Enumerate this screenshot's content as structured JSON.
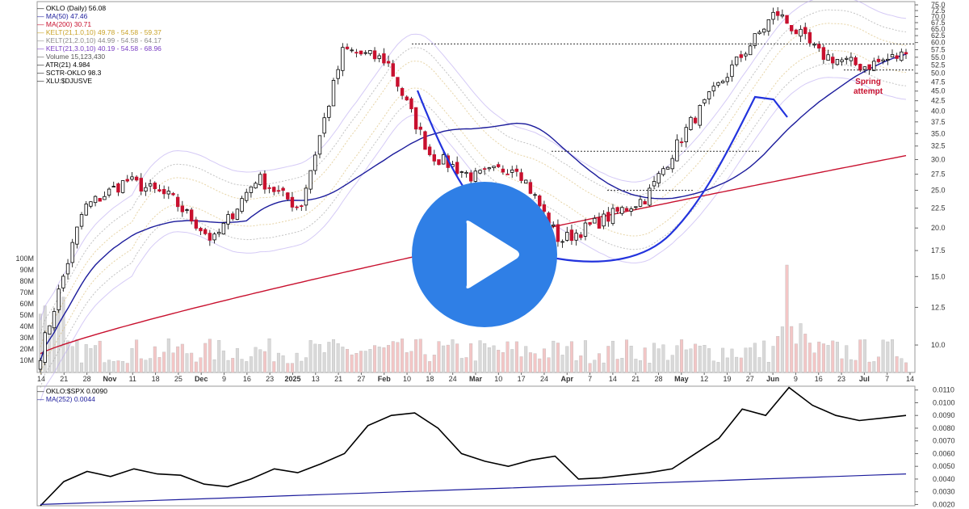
{
  "legend": {
    "price": [
      {
        "label": "OKLO (Daily) 56.08",
        "color": "#000000"
      },
      {
        "label": "MA(50) 47.46",
        "color": "#1c1c9c"
      },
      {
        "label": "MA(200) 30.71",
        "color": "#c8102e"
      },
      {
        "label": "KELT(21,1.0,10) 49.78 - 54.58 - 59.37",
        "color": "#c9a227"
      },
      {
        "label": "KELT(21,2.0,10) 44.99 - 54.58 - 64.17",
        "color": "#8a8a8a"
      },
      {
        "label": "KELT(21,3.0,10) 40.19 - 54.58 - 68.96",
        "color": "#7b3fc4"
      },
      {
        "label": "Volume 15,123,430",
        "color": "#555555"
      },
      {
        "label": "ATR(21) 4.984",
        "color": "#000000"
      },
      {
        "label": "SCTR-OKLO 98.3",
        "color": "#000000"
      },
      {
        "label": "XLU:$DJUSVE",
        "color": "#000000"
      }
    ],
    "ratio": [
      {
        "label": "OKLO:$SPX 0.0090",
        "color": "#000000"
      },
      {
        "label": "MA(252) 0.0044",
        "color": "#1c1c9c"
      }
    ]
  },
  "annotations": {
    "spring": [
      "Spring",
      "attempt"
    ],
    "spring_color": "#c8102e",
    "curve_color": "#2233dd"
  },
  "colors": {
    "up_candle": "#ffffff",
    "down_candle": "#c8102e",
    "ma50": "#1c1c9c",
    "ma200": "#c8102e",
    "play": "#2f7fe6"
  },
  "chart_data": [
    {
      "type": "candlestick",
      "title": "OKLO (Daily) 56.08",
      "yscale": "log",
      "ylim": [
        8.5,
        75
      ],
      "y_ticks": [
        "75.0",
        "72.5",
        "70.0",
        "67.5",
        "65.0",
        "62.5",
        "60.0",
        "57.5",
        "55.0",
        "52.5",
        "50.0",
        "47.5",
        "45.0",
        "42.5",
        "40.0",
        "37.5",
        "35.0",
        "32.5",
        "30.0",
        "27.5",
        "25.0",
        "22.5",
        "20.0",
        "17.5",
        "15.0",
        "12.5",
        "10.0"
      ],
      "volume_ticks": [
        "100M",
        "90M",
        "80M",
        "70M",
        "60M",
        "50M",
        "40M",
        "30M",
        "20M",
        "10M"
      ],
      "x_labels": [
        "14",
        "21",
        "28",
        "Nov",
        "11",
        "18",
        "25",
        "Dec",
        "9",
        "16",
        "23",
        "2025",
        "13",
        "21",
        "27",
        "Feb",
        "10",
        "18",
        "24",
        "Mar",
        "10",
        "17",
        "24",
        "Apr",
        "7",
        "14",
        "21",
        "28",
        "May",
        "12",
        "19",
        "27",
        "Jun",
        "9",
        "16",
        "23",
        "Jul",
        "7",
        "14"
      ],
      "bold_labels": [
        "Nov",
        "Dec",
        "2025",
        "Feb",
        "Mar",
        "Apr",
        "May",
        "Jun",
        "Jul"
      ],
      "key_points": [
        {
          "date": "Oct 14",
          "close": 9.5
        },
        {
          "date": "Oct 21",
          "close": 22.5
        },
        {
          "date": "Nov 5",
          "close": 26.5
        },
        {
          "date": "Nov 25",
          "close": 24
        },
        {
          "date": "Dec 16",
          "close": 18.5
        },
        {
          "date": "Jan 7",
          "close": 27
        },
        {
          "date": "Jan 15",
          "close": 22.5
        },
        {
          "date": "Feb 7",
          "close": 57.5
        },
        {
          "date": "Feb 10",
          "close": 54
        },
        {
          "date": "Mar 4",
          "close": 31
        },
        {
          "date": "Mar 17",
          "close": 27
        },
        {
          "date": "Mar 24",
          "close": 29
        },
        {
          "date": "Apr 7",
          "close": 18.5
        },
        {
          "date": "Apr 21",
          "close": 21
        },
        {
          "date": "May 6",
          "close": 24
        },
        {
          "date": "May 19",
          "close": 37
        },
        {
          "date": "May 28",
          "close": 52
        },
        {
          "date": "Jun 11",
          "close": 72
        },
        {
          "date": "Jun 23",
          "close": 56
        },
        {
          "date": "Jul 3",
          "close": 52
        },
        {
          "date": "Jul 14",
          "close": 56.08
        }
      ],
      "resistance_levels": [
        59.5,
        31.5,
        25
      ],
      "ma50_last": 47.46,
      "ma200_last": 30.71
    },
    {
      "type": "line",
      "title": "OKLO:$SPX 0.0090",
      "ylim": [
        0.0019,
        0.0113
      ],
      "y_ticks": [
        "0.0110",
        "0.0100",
        "0.0090",
        "0.0080",
        "0.0070",
        "0.0060",
        "0.0050",
        "0.0040",
        "0.0030",
        "0.0020"
      ],
      "series": [
        {
          "name": "OKLO:$SPX",
          "values": [
            0.0019,
            0.0038,
            0.0046,
            0.0042,
            0.0048,
            0.0044,
            0.0043,
            0.0036,
            0.0034,
            0.004,
            0.0048,
            0.0045,
            0.0052,
            0.006,
            0.0082,
            0.009,
            0.0092,
            0.008,
            0.006,
            0.0054,
            0.005,
            0.0055,
            0.0058,
            0.004,
            0.0041,
            0.0043,
            0.0045,
            0.0048,
            0.006,
            0.0072,
            0.0095,
            0.009,
            0.0112,
            0.0098,
            0.009,
            0.0086,
            0.0088,
            0.009
          ]
        },
        {
          "name": "MA(252)",
          "values": [
            0.002,
            0.0021,
            0.0022,
            0.0023,
            0.0024,
            0.0025,
            0.0026,
            0.0027,
            0.0028,
            0.0029,
            0.003,
            0.0031,
            0.0032,
            0.0033,
            0.0034,
            0.0035,
            0.0036,
            0.0037,
            0.0038,
            0.0039,
            0.004,
            0.0041,
            0.0042,
            0.0043,
            0.0044
          ]
        }
      ]
    }
  ]
}
